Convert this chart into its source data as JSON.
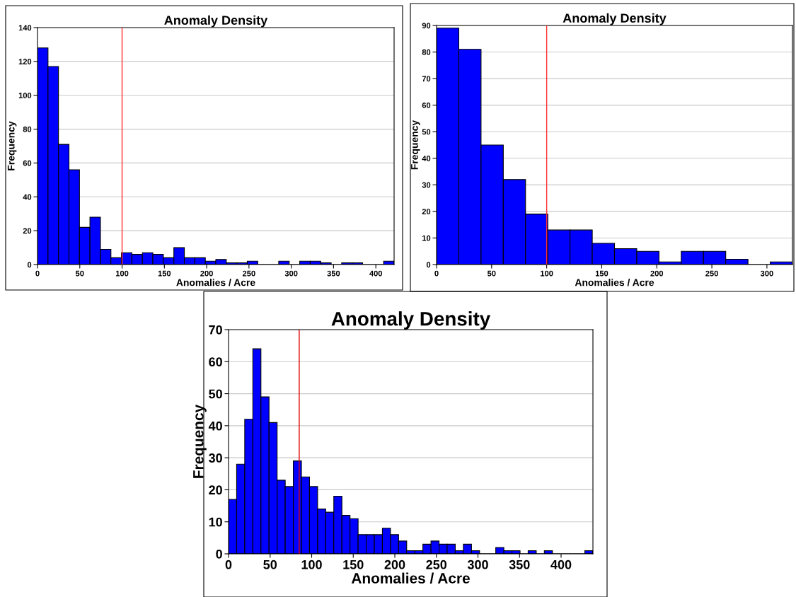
{
  "chart_data": [
    {
      "type": "histogram",
      "title": "Anomaly Density",
      "xlabel": "Anomalies / Acre",
      "ylabel": "Frequency",
      "color": "#0000ff",
      "bins": [
        0,
        12.4,
        24.8,
        37.2,
        49.6,
        62,
        74.4,
        86.8,
        99.2,
        111.6,
        124,
        136.4,
        148.8,
        161.2,
        173.6,
        186,
        198.4,
        210.8,
        223.2,
        235.6,
        248,
        260.4,
        272.8,
        285.2,
        297.6,
        310,
        322.4,
        334.8,
        347.2,
        359.6,
        372,
        384.4,
        396.8,
        409.2,
        421.6
      ],
      "values": [
        128,
        117,
        71,
        56,
        22,
        28,
        9,
        4,
        7,
        6,
        7,
        6,
        4,
        10,
        4,
        4,
        2,
        3,
        1,
        1,
        2,
        0,
        0,
        2,
        0,
        2,
        2,
        1,
        0,
        1,
        1,
        0,
        0,
        2
      ],
      "xlim": [
        0,
        421.6
      ],
      "xticks": [
        0,
        50,
        100,
        150,
        200,
        250,
        300,
        350,
        400
      ],
      "ylim": [
        0,
        140
      ],
      "yticks": [
        0,
        20,
        40,
        60,
        80,
        100,
        120,
        140
      ],
      "grid": "y",
      "ref_lines": [
        {
          "axis": "x",
          "value": 100,
          "color": "#ff3030"
        }
      ]
    },
    {
      "type": "histogram",
      "title": "Anomaly Density",
      "xlabel": "Anomalies / Acre",
      "ylabel": "Frequency",
      "color": "#0000ff",
      "bins": [
        0,
        20.2,
        40.4,
        60.6,
        80.8,
        101,
        121.2,
        141.4,
        161.6,
        181.8,
        202,
        222.2,
        242.4,
        262.6,
        282.8,
        303,
        323.2
      ],
      "values": [
        89,
        81,
        45,
        32,
        19,
        13,
        13,
        8,
        6,
        5,
        1,
        5,
        5,
        2,
        0,
        1
      ],
      "xlim": [
        0,
        323.2
      ],
      "xticks": [
        0,
        50,
        100,
        150,
        200,
        250,
        300
      ],
      "ylim": [
        0,
        90
      ],
      "yticks": [
        0,
        10,
        20,
        30,
        40,
        50,
        60,
        70,
        80,
        90
      ],
      "grid": "y",
      "ref_lines": [
        {
          "axis": "x",
          "value": 100,
          "color": "#ff3030"
        }
      ]
    },
    {
      "type": "histogram",
      "title": "Anomaly Density",
      "xlabel": "Anomalies / Acre",
      "ylabel": "Frequency",
      "color": "#0000ff",
      "bins": [
        0,
        9.74,
        19.48,
        29.22,
        38.96,
        48.7,
        58.44,
        68.18,
        77.92,
        87.66,
        97.4,
        107.14,
        116.88,
        126.62,
        136.36,
        146.1,
        155.84,
        165.58,
        175.32,
        185.06,
        194.8,
        204.54,
        214.28,
        224.02,
        233.76,
        243.5,
        253.24,
        262.98,
        272.72,
        282.46,
        292.2,
        301.94,
        311.68,
        321.42,
        331.16,
        340.9,
        350.64,
        360.38,
        370.12,
        379.86,
        389.6,
        399.34,
        409.08,
        418.82,
        428.56,
        438.3
      ],
      "values": [
        17,
        28,
        42,
        64,
        49,
        41,
        23,
        21,
        29,
        24,
        21,
        14,
        13,
        18,
        12,
        11,
        6,
        6,
        6,
        8,
        6,
        4,
        1,
        1,
        3,
        4,
        3,
        3,
        1,
        3,
        1,
        0,
        0,
        2,
        1,
        1,
        0,
        1,
        0,
        1,
        0,
        0,
        0,
        0,
        1
      ],
      "xlim": [
        0,
        438.3
      ],
      "xticks": [
        0,
        50,
        100,
        150,
        200,
        250,
        300,
        350,
        400
      ],
      "ylim": [
        0,
        70
      ],
      "yticks": [
        0,
        10,
        20,
        30,
        40,
        50,
        60,
        70
      ],
      "grid": "y",
      "ref_lines": [
        {
          "axis": "x",
          "value": 85,
          "color": "#dd0000"
        }
      ]
    }
  ]
}
